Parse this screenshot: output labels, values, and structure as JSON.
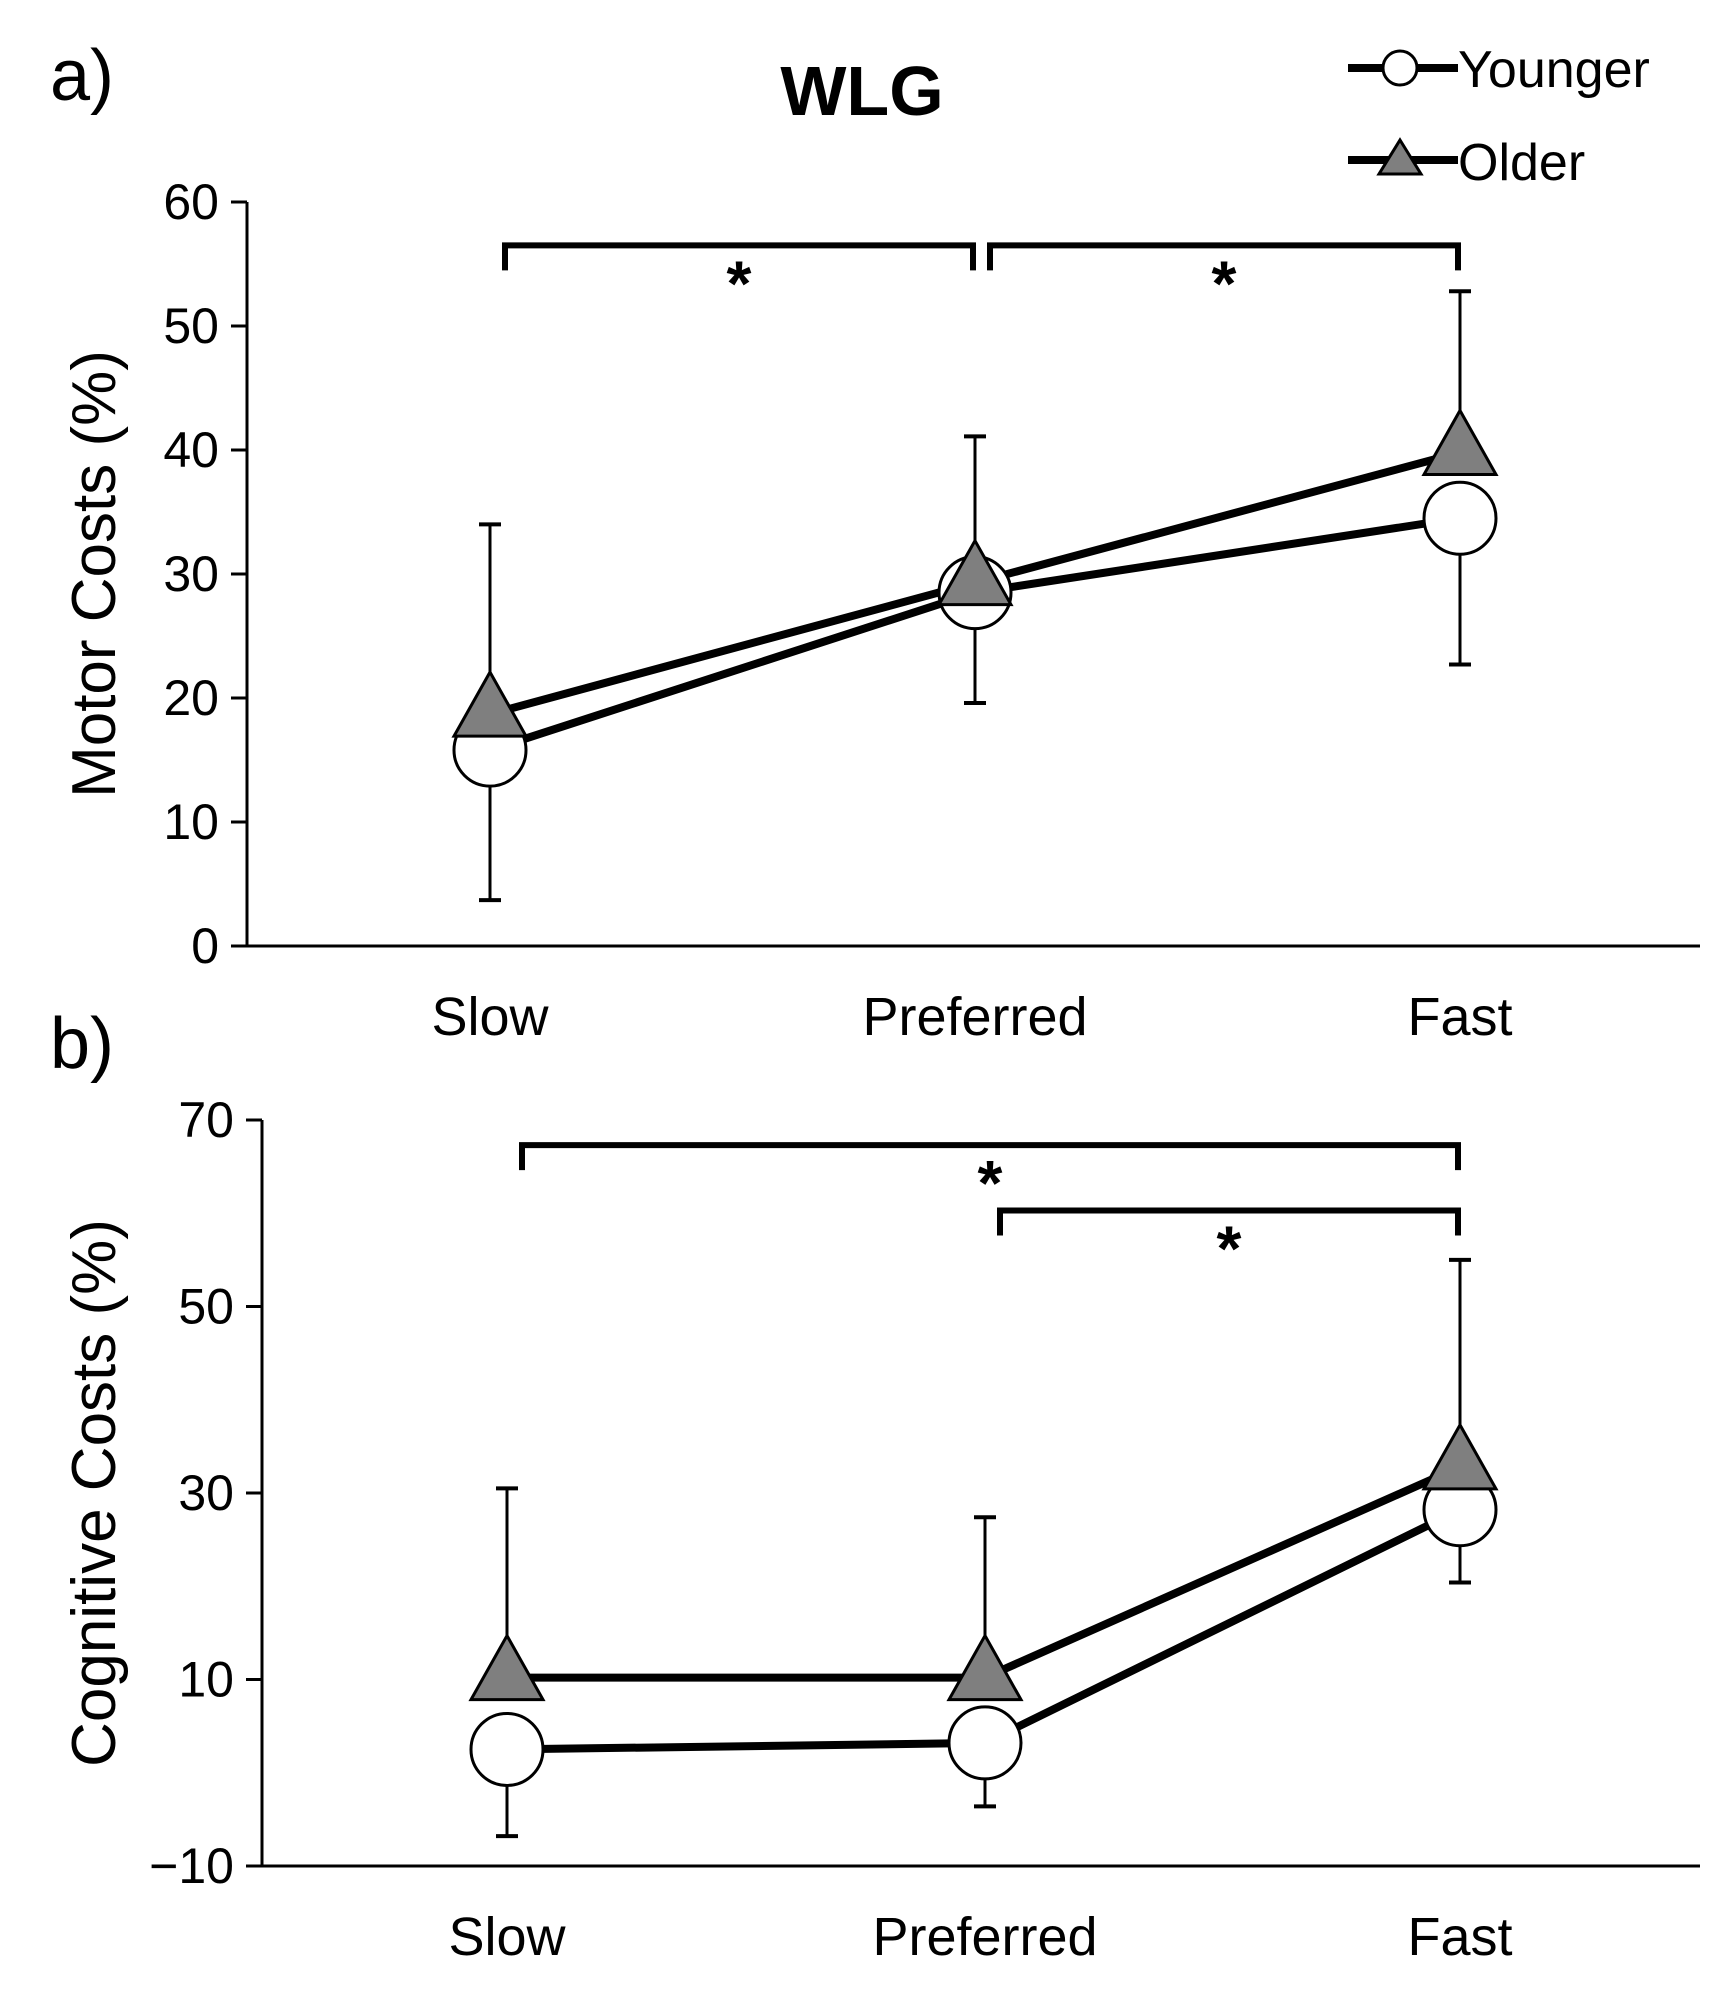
{
  "title": "WLG",
  "legend": [
    {
      "label": "Younger",
      "marker": "circle"
    },
    {
      "label": "Older",
      "marker": "triangle"
    }
  ],
  "colors": {
    "line": "#000000",
    "younger_fill": "#ffffff",
    "older_fill": "#7f7f7f"
  },
  "chart_data": [
    {
      "panel": "a)",
      "type": "line",
      "ylabel": "Motor Costs (%)",
      "ylim": [
        0,
        60
      ],
      "yticks": [
        "0",
        "10",
        "20",
        "30",
        "40",
        "50",
        "60"
      ],
      "categories": [
        "Slow",
        "Preferred",
        "Fast"
      ],
      "series": [
        {
          "name": "Younger",
          "values": [
            15.8,
            28.5,
            34.5
          ],
          "error": [
            12.1,
            8.9,
            11.8
          ],
          "error_dir": "down"
        },
        {
          "name": "Older",
          "values": [
            18.7,
            29.3,
            39.8
          ],
          "error": [
            15.3,
            11.8,
            13.0
          ],
          "error_dir": "up"
        }
      ],
      "significance": [
        {
          "from": 0,
          "to": 1,
          "y": 56.5,
          "label": "*"
        },
        {
          "from": 1,
          "to": 2,
          "y": 56.5,
          "label": "*"
        }
      ]
    },
    {
      "panel": "b)",
      "type": "line",
      "ylabel": "Cognitive Costs (%)",
      "ylim": [
        -10,
        70
      ],
      "yticks": [
        "−10",
        "10",
        "30",
        "50",
        "70"
      ],
      "categories": [
        "Slow",
        "Preferred",
        "Fast"
      ],
      "series": [
        {
          "name": "Younger",
          "values": [
            2.5,
            3.2,
            28.2
          ],
          "error": [
            9.3,
            6.8,
            7.8
          ],
          "error_dir": "down"
        },
        {
          "name": "Older",
          "values": [
            10.2,
            10.2,
            32.8
          ],
          "error": [
            20.3,
            17.2,
            22.2
          ],
          "error_dir": "up"
        }
      ],
      "significance": [
        {
          "from": 0,
          "to": 2,
          "y": 67.3,
          "label": "*"
        },
        {
          "from": 1,
          "to": 2,
          "y": 60.3,
          "label": "*"
        }
      ]
    }
  ]
}
